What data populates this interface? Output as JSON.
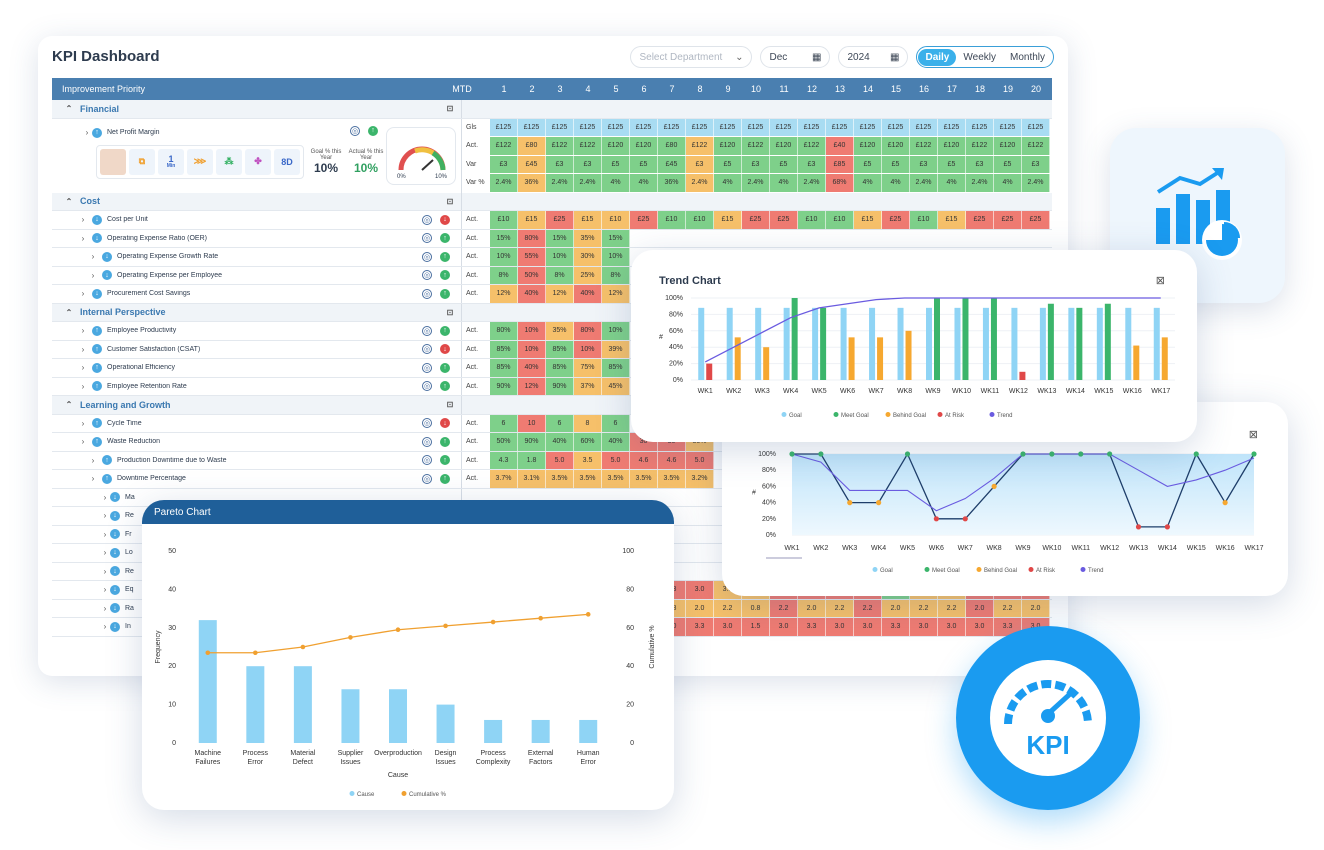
{
  "dashboard": {
    "title": "KPI Dashboard",
    "department_placeholder": "Select Department",
    "month": "Dec",
    "year": "2024",
    "period_options": [
      "Daily",
      "Weekly",
      "Monthly"
    ],
    "selected_period": "Daily"
  },
  "table": {
    "header": {
      "priority": "Improvement Priority",
      "mtd": "MTD",
      "days": [
        "1",
        "2",
        "3",
        "4",
        "5",
        "6",
        "7",
        "8",
        "9",
        "10",
        "11",
        "12",
        "13",
        "14",
        "15",
        "16",
        "17",
        "18",
        "19",
        "20"
      ]
    },
    "financial": {
      "section": "Financial",
      "metric": "Net Profit Margin",
      "goal_label": "Goal % this Year",
      "goal_value": "10%",
      "actual_label": "Actual % this Year",
      "actual_value": "10%",
      "gauge_min": "0%",
      "gauge_max": "10%",
      "tile_min_value": "1",
      "tile_min_unit": "Min",
      "tile_8d": "8D",
      "rows": [
        {
          "type": "Gls",
          "cells": [
            "£125",
            "£125",
            "£125",
            "£125",
            "£125",
            "£125",
            "£125",
            "£125",
            "£125",
            "£125",
            "£125",
            "£125",
            "£125",
            "£125",
            "£125",
            "£125",
            "£125",
            "£125",
            "£125",
            "£125"
          ],
          "colors": "bbbbbbbbbbbbbbbbbbbb"
        },
        {
          "type": "Act.",
          "cells": [
            "£122",
            "£80",
            "£122",
            "£122",
            "£120",
            "£120",
            "£80",
            "£122",
            "£120",
            "£122",
            "£120",
            "£122",
            "£40",
            "£120",
            "£120",
            "£122",
            "£120",
            "£122",
            "£120",
            "£122"
          ],
          "colors": "gygggggyggggrggggggg"
        },
        {
          "type": "Var",
          "cells": [
            "£3",
            "£45",
            "£3",
            "£3",
            "£5",
            "£5",
            "£45",
            "£3",
            "£5",
            "£3",
            "£5",
            "£3",
            "£85",
            "£5",
            "£5",
            "£3",
            "£5",
            "£3",
            "£5",
            "£3"
          ],
          "colors": "gygggggyggggrggggggg"
        },
        {
          "type": "Var %",
          "cells": [
            "2.4%",
            "36%",
            "2.4%",
            "2.4%",
            "4%",
            "4%",
            "36%",
            "2.4%",
            "4%",
            "2.4%",
            "4%",
            "2.4%",
            "68%",
            "4%",
            "4%",
            "2.4%",
            "4%",
            "2.4%",
            "4%",
            "2.4%"
          ],
          "colors": "gygggggyggggrggggggg"
        }
      ]
    },
    "cost": {
      "section": "Cost",
      "rows": [
        {
          "label": "Cost per Unit",
          "type": "Act.",
          "cells": [
            "£10",
            "£15",
            "£25",
            "£15",
            "£10",
            "£25",
            "£10",
            "£10",
            "£15",
            "£25",
            "£25",
            "£10",
            "£10",
            "£15",
            "£25",
            "£10",
            "£15",
            "£25",
            "£25",
            "£25"
          ],
          "colors": "gyryyrggyrrggyrgyrrr"
        },
        {
          "label": "Operating Expense Ratio (OER)",
          "type": "Act.",
          "cells": [
            "15%",
            "80%",
            "15%",
            "35%",
            "15%"
          ],
          "colors": "grgyg"
        },
        {
          "label": "Operating Expense Growth Rate",
          "type": "Act.",
          "cells": [
            "10%",
            "55%",
            "10%",
            "30%",
            "10%"
          ],
          "colors": "grgyg"
        },
        {
          "label": "Operating Expense per Employee",
          "type": "Act.",
          "cells": [
            "8%",
            "50%",
            "8%",
            "25%",
            "8%"
          ],
          "colors": "grgyg"
        },
        {
          "label": "Procurement Cost Savings",
          "type": "Act.",
          "cells": [
            "12%",
            "40%",
            "12%",
            "40%",
            "12%"
          ],
          "colors": "yryry"
        }
      ]
    },
    "internal": {
      "section": "Internal Perspective",
      "rows": [
        {
          "label": "Employee Productivity",
          "type": "Act.",
          "cells": [
            "80%",
            "10%",
            "35%",
            "80%",
            "10%"
          ],
          "colors": "gryrg"
        },
        {
          "label": "Customer Satisfaction (CSAT)",
          "type": "Act.",
          "cells": [
            "85%",
            "10%",
            "85%",
            "10%",
            "39%"
          ],
          "colors": "grgry"
        },
        {
          "label": "Operational Efficiency",
          "type": "Act.",
          "cells": [
            "85%",
            "40%",
            "85%",
            "75%",
            "85%"
          ],
          "colors": "grgyg"
        },
        {
          "label": "Employee Retention Rate",
          "type": "Act.",
          "cells": [
            "90%",
            "12%",
            "90%",
            "37%",
            "45%"
          ],
          "colors": "grgyy"
        }
      ]
    },
    "learning": {
      "section": "Learning and Growth",
      "rows": [
        {
          "label": "Cycle Time",
          "type": "Act.",
          "cells": [
            "6",
            "10",
            "6",
            "8",
            "6"
          ],
          "colors": "grgyg"
        },
        {
          "label": "Waste Reduction",
          "type": "Act.",
          "cells": [
            "50%",
            "90%",
            "40%",
            "60%",
            "40%",
            "30",
            "30",
            "30%"
          ],
          "colors": "gggggrry"
        },
        {
          "label": "Production Downtime due to Waste",
          "type": "Act.",
          "cells": [
            "4.3",
            "1.8",
            "5.0",
            "3.5",
            "5.0",
            "4.6",
            "4.6",
            "5.0"
          ],
          "colors": "ggryrrrr"
        },
        {
          "label": "Downtime Percentage",
          "type": "Act.",
          "cells": [
            "3.7%",
            "3.1%",
            "3.5%",
            "3.5%",
            "3.5%",
            "3.5%",
            "3.5%",
            "3.2%"
          ],
          "colors": "yyyyyyyy"
        }
      ],
      "sub_initials": [
        "Ma",
        "Re",
        "Fr",
        "Lo",
        "Re",
        "Eq",
        "Ra",
        "In"
      ],
      "tail_rows": [
        {
          "cells": [
            "4.5",
            "3.5",
            "5.0"
          ],
          "colors": "rrr"
        },
        {
          "cells": [
            "3.5",
            "4.5",
            "5.0"
          ],
          "colors": "rrr"
        },
        {
          "cells": [
            "3.3",
            "3.0",
            "3.5",
            "1.7",
            "3.5",
            "3.0",
            "3.5",
            "3.5",
            "3.2",
            "4.2",
            "4.2",
            "3.5",
            "3.5",
            "3.5"
          ],
          "colors": "rryyrrrrgyyrrr"
        },
        {
          "cells": [
            "2.8",
            "2.0",
            "2.2",
            "0.8",
            "2.2",
            "2.0",
            "2.2",
            "2.2",
            "2.0",
            "2.2",
            "2.2",
            "2.0",
            "2.2",
            "2.0"
          ],
          "colors": "yyyyryyryyyryy"
        },
        {
          "cells": [
            "3.0",
            "3.3",
            "3.0",
            "1.5",
            "3.0",
            "3.3",
            "3.0",
            "3.0",
            "3.3",
            "3.0",
            "3.0",
            "3.0",
            "3.3",
            "3.0"
          ],
          "colors": "rrrrrrrrrrrrrr"
        }
      ]
    }
  },
  "trend_chart": {
    "title": "Trend Chart",
    "y_axis_label": "#",
    "legend": [
      "Goal",
      "Meet Goal",
      "Behind Goal",
      "At Risk",
      "Trend"
    ],
    "chart_data": {
      "type": "bar",
      "categories": [
        "WK1",
        "WK2",
        "WK3",
        "WK4",
        "WK5",
        "WK6",
        "WK7",
        "WK8",
        "WK9",
        "WK10",
        "WK11",
        "WK12",
        "WK13",
        "WK14",
        "WK15",
        "WK16",
        "WK17"
      ],
      "y_ticks": [
        "0%",
        "20%",
        "40%",
        "60%",
        "80%",
        "100%"
      ],
      "ylim": [
        0,
        100
      ],
      "goal": [
        88,
        88,
        88,
        88,
        88,
        88,
        88,
        88,
        88,
        88,
        88,
        88,
        88,
        88,
        88,
        88,
        88
      ],
      "actual": [
        20,
        52,
        40,
        100,
        88,
        52,
        52,
        60,
        100,
        100,
        100,
        10,
        93,
        88,
        93,
        42,
        52
      ],
      "status": [
        "risk",
        "behind",
        "behind",
        "meet",
        "meet",
        "behind",
        "behind",
        "behind",
        "meet",
        "meet",
        "meet",
        "risk",
        "meet",
        "meet",
        "meet",
        "behind",
        "behind"
      ],
      "trend": [
        22,
        40,
        58,
        76,
        88,
        93,
        98,
        100,
        100,
        100,
        100,
        100,
        100,
        100,
        100,
        100,
        100
      ]
    }
  },
  "line_chart": {
    "y_axis_label": "#",
    "legend": [
      "Goal",
      "Meet Goal",
      "Behind Goal",
      "At Risk",
      "Trend"
    ],
    "chart_data": {
      "type": "area",
      "categories": [
        "WK1",
        "WK2",
        "WK3",
        "WK4",
        "WK5",
        "WK6",
        "WK7",
        "WK8",
        "WK9",
        "WK10",
        "WK11",
        "WK12",
        "WK13",
        "WK14",
        "WK15",
        "WK16",
        "WK17"
      ],
      "y_ticks": [
        "0%",
        "20%",
        "40%",
        "60%",
        "80%",
        "100%"
      ],
      "ylim": [
        0,
        100
      ],
      "values": [
        100,
        100,
        40,
        40,
        100,
        20,
        20,
        60,
        100,
        100,
        100,
        100,
        10,
        10,
        100,
        40,
        100
      ],
      "status": [
        "meet",
        "meet",
        "behind",
        "behind",
        "meet",
        "risk",
        "risk",
        "behind",
        "meet",
        "meet",
        "meet",
        "meet",
        "risk",
        "risk",
        "meet",
        "behind",
        "meet"
      ],
      "trend": [
        100,
        90,
        55,
        55,
        55,
        30,
        45,
        70,
        100,
        100,
        100,
        100,
        80,
        60,
        68,
        80,
        95
      ]
    }
  },
  "pareto_chart": {
    "title": "Pareto Chart",
    "legend": [
      "Cause",
      "Cumulative %"
    ],
    "chart_data": {
      "type": "bar",
      "categories": [
        "Machine Failures",
        "Process Error",
        "Material Defect",
        "Supplier Issues",
        "Overproduction",
        "Design Issues",
        "Process Complexity",
        "External Factors",
        "Human Error"
      ],
      "values": [
        32,
        20,
        20,
        14,
        14,
        10,
        6,
        6,
        6
      ],
      "cumulative": [
        47,
        47,
        50,
        55,
        59,
        61,
        63,
        65,
        67
      ],
      "xlabel": "Cause",
      "ylabel": "Frequency",
      "y2label": "Cumulative %",
      "ylim": [
        0,
        50
      ],
      "y_ticks": [
        "0",
        "10",
        "20",
        "30",
        "40",
        "50"
      ],
      "y2lim": [
        0,
        100
      ],
      "y2_ticks": [
        "0",
        "20",
        "40",
        "60",
        "80",
        "100"
      ]
    }
  },
  "kpi_badge": {
    "label": "KPI"
  },
  "colors": {
    "accent": "#3ab0ea",
    "header": "#4a7fb0",
    "green": "#7ed08a",
    "yellow": "#f6c06a",
    "red": "#ef7b72",
    "blue": "#a8dcf2",
    "trend": "#6a5be0"
  }
}
